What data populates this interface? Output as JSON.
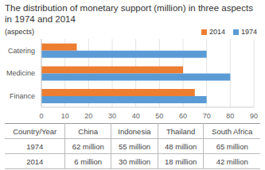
{
  "chart_data": {
    "type": "bar",
    "title": "The distribution of monetary support (million) in three aspects in 1974 and 2014",
    "ylabel": "(aspects)",
    "orientation": "horizontal",
    "categories": [
      "Catering",
      "Medicine",
      "Finance"
    ],
    "series": [
      {
        "name": "2014",
        "color": "#ED7D31",
        "values": [
          15,
          60,
          65
        ]
      },
      {
        "name": "1974",
        "color": "#5B9BD5",
        "values": [
          70,
          80,
          70
        ]
      }
    ],
    "xlim": [
      0,
      90
    ],
    "xticks": [
      0,
      10,
      20,
      30,
      40,
      50,
      60,
      70,
      80,
      90
    ],
    "grid": true,
    "legend": "top-right"
  },
  "table": {
    "header": [
      "Country/Year",
      "China",
      "Indonesia",
      "Thailand",
      "South Africa"
    ],
    "rows": [
      [
        "1974",
        "62 million",
        "55 million",
        "48 million",
        "65 million"
      ],
      [
        "2014",
        "6 million",
        "30 million",
        "18 million",
        "42 million"
      ]
    ]
  }
}
